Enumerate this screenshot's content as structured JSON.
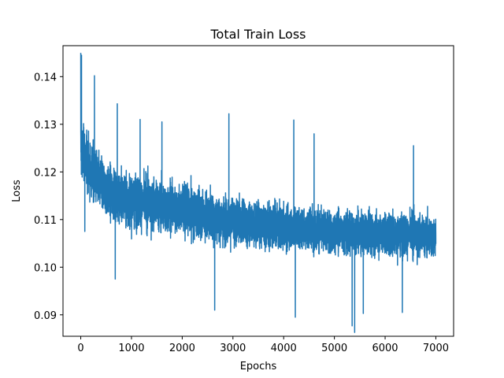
{
  "chart_data": {
    "type": "line",
    "title": "Total Train Loss",
    "xlabel": "Epochs",
    "ylabel": "Loss",
    "xlim": [
      -350,
      7350
    ],
    "ylim": [
      0.0855,
      0.1465
    ],
    "xticks": [
      0,
      1000,
      2000,
      3000,
      4000,
      5000,
      6000,
      7000
    ],
    "xtick_labels": [
      "0",
      "1000",
      "2000",
      "3000",
      "4000",
      "5000",
      "6000",
      "7000"
    ],
    "yticks": [
      0.09,
      0.1,
      0.11,
      0.12,
      0.13,
      0.14
    ],
    "ytick_labels": [
      "0.09",
      "0.10",
      "0.11",
      "0.12",
      "0.13",
      "0.14"
    ],
    "grid": false,
    "series": [
      {
        "name": "Total Train Loss",
        "color": "#1f77b4",
        "n_points": 7000,
        "x_range": [
          0,
          7000
        ],
        "trend": {
          "x": [
            0,
            200,
            500,
            1000,
            2000,
            3000,
            4000,
            5000,
            6000,
            7000
          ],
          "mean": [
            0.125,
            0.12,
            0.116,
            0.114,
            0.112,
            0.1095,
            0.1085,
            0.1075,
            0.107,
            0.1065
          ],
          "low": [
            0.116,
            0.108,
            0.104,
            0.1005,
            0.0985,
            0.097,
            0.0965,
            0.096,
            0.0955,
            0.095
          ],
          "high": [
            0.145,
            0.137,
            0.131,
            0.128,
            0.1245,
            0.1215,
            0.1195,
            0.1185,
            0.1175,
            0.117
          ]
        },
        "peaks": [
          {
            "x": 0,
            "y": 0.145
          },
          {
            "x": 15,
            "y": 0.1445
          },
          {
            "x": 270,
            "y": 0.1402
          },
          {
            "x": 720,
            "y": 0.1343
          },
          {
            "x": 1170,
            "y": 0.131
          },
          {
            "x": 1600,
            "y": 0.1305
          },
          {
            "x": 2920,
            "y": 0.1322
          },
          {
            "x": 4200,
            "y": 0.1309
          },
          {
            "x": 4600,
            "y": 0.128
          },
          {
            "x": 6560,
            "y": 0.1255
          }
        ],
        "troughs": [
          {
            "x": 80,
            "y": 0.1075
          },
          {
            "x": 680,
            "y": 0.0975
          },
          {
            "x": 2640,
            "y": 0.091
          },
          {
            "x": 4230,
            "y": 0.0895
          },
          {
            "x": 5350,
            "y": 0.0877
          },
          {
            "x": 5400,
            "y": 0.0863
          },
          {
            "x": 5570,
            "y": 0.0903
          },
          {
            "x": 6340,
            "y": 0.0905
          }
        ]
      }
    ]
  }
}
